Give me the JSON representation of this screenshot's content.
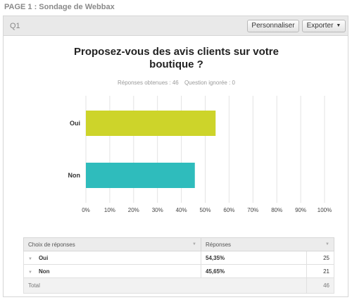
{
  "page": {
    "label": "PAGE 1 : Sondage de Webbax"
  },
  "question": {
    "label": "Q1",
    "personnaliser_label": "Personnaliser",
    "exporter_label": "Exporter",
    "title_line1": "Proposez-vous des avis clients sur votre",
    "title_line2": "boutique ?",
    "responses_text": "Réponses obtenues : 46",
    "ignored_text": "Question ignorée : 0"
  },
  "colors": {
    "oui": "#cdd42a",
    "non": "#2fbcbc"
  },
  "chart_data": {
    "type": "bar",
    "orientation": "horizontal",
    "categories": [
      "Oui",
      "Non"
    ],
    "values": [
      54.35,
      45.65
    ],
    "xlim": [
      0,
      100
    ],
    "xticks": [
      "0%",
      "10%",
      "20%",
      "30%",
      "40%",
      "50%",
      "60%",
      "70%",
      "80%",
      "90%",
      "100%"
    ],
    "grid": true
  },
  "table": {
    "headers": {
      "choice": "Choix de réponses",
      "responses": "Réponses"
    },
    "rows": [
      {
        "choice": "Oui",
        "pct": "54,35%",
        "count": "25"
      },
      {
        "choice": "Non",
        "pct": "45,65%",
        "count": "21"
      }
    ],
    "total_label": "Total",
    "total_count": "46"
  }
}
